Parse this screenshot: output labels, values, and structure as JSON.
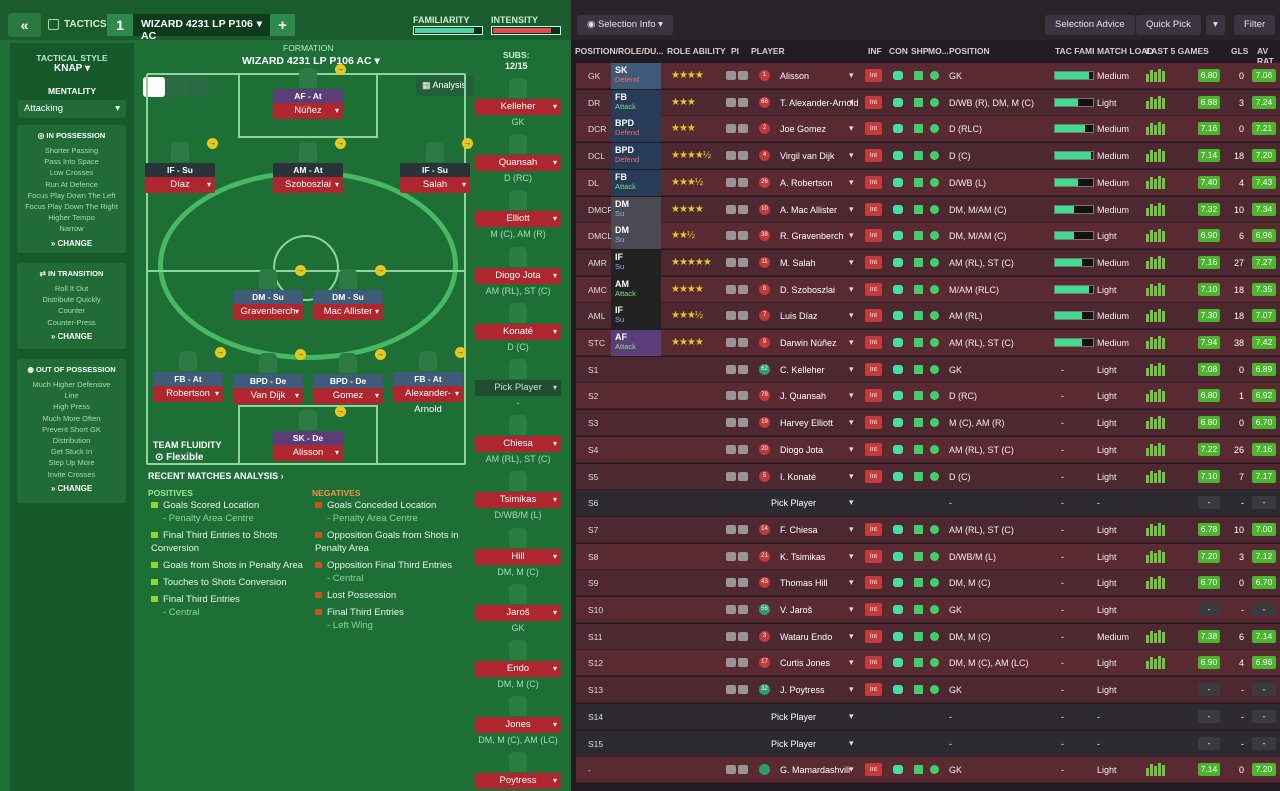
{
  "topbar": {
    "tactics_label": "TACTICS",
    "tactic_number": "1",
    "tactic_name": "WIZARD 4231 LP P106 AC",
    "familiarity_label": "FAMILIARITY",
    "intensity_label": "INTENSITY",
    "familiarity_level": 0.9,
    "intensity_level": 0.88
  },
  "sidebar": {
    "style_label": "TACTICAL STYLE",
    "style_value": "KNAP",
    "mentality_label": "MENTALITY",
    "mentality_value": "Attacking",
    "possession": {
      "title": "IN POSSESSION",
      "items": [
        "Shorter Passing",
        "Pass Into Space",
        "Low Crosses",
        "Run At Defence",
        "Focus Play Down The Left",
        "Focus Play Down The Right",
        "Higher Tempo",
        "Narrow"
      ],
      "change": "CHANGE"
    },
    "transition": {
      "title": "IN TRANSITION",
      "items": [
        "Roll It Out",
        "Distribute Quickly",
        "Counter",
        "Counter-Press"
      ],
      "change": "CHANGE"
    },
    "oop": {
      "title": "OUT OF POSSESSION",
      "items": [
        "Much Higher Defensive",
        "Line",
        "High Press",
        "Much More Often",
        "Prevent Short GK",
        "Distribution",
        "Get Stuck In",
        "Step Up More",
        "Invite Crosses"
      ],
      "change": "CHANGE"
    }
  },
  "formation": {
    "label": "FORMATION",
    "name": "WIZARD 4231 LP P106 AC",
    "analysis": "Analysis",
    "fluidity_label": "TEAM FLUIDITY",
    "fluidity_value": "Flexible",
    "players": [
      {
        "role": "AF",
        "duty": "At",
        "name": "Núñez"
      },
      {
        "role": "IF",
        "duty": "Su",
        "name": "Díaz"
      },
      {
        "role": "AM",
        "duty": "At",
        "name": "Szoboszlai"
      },
      {
        "role": "IF",
        "duty": "Su",
        "name": "Salah"
      },
      {
        "role": "DM",
        "duty": "Su",
        "name": "Gravenberch"
      },
      {
        "role": "DM",
        "duty": "Su",
        "name": "Mac Allister"
      },
      {
        "role": "FB",
        "duty": "At",
        "name": "Robertson"
      },
      {
        "role": "BPD",
        "duty": "De",
        "name": "Van Dijk"
      },
      {
        "role": "BPD",
        "duty": "De",
        "name": "Gomez"
      },
      {
        "role": "FB",
        "duty": "At",
        "name": "Alexander-Arnold"
      },
      {
        "role": "SK",
        "duty": "De",
        "name": "Alisson"
      }
    ]
  },
  "subs": {
    "label": "SUBS:",
    "count": "12/15",
    "list": [
      {
        "name": "Kelleher",
        "pos": "GK"
      },
      {
        "name": "Quansah",
        "pos": "D (RC)"
      },
      {
        "name": "Elliott",
        "pos": "M (C), AM (R)"
      },
      {
        "name": "Diogo Jota",
        "pos": "AM (RL), ST (C)"
      },
      {
        "name": "Konaté",
        "pos": "D (C)"
      },
      {
        "name": "Pick Player",
        "pos": "-"
      },
      {
        "name": "Chiesa",
        "pos": "AM (RL), ST (C)"
      },
      {
        "name": "Tsimikas",
        "pos": "D/WB/M (L)"
      },
      {
        "name": "Hill",
        "pos": "DM, M (C)"
      },
      {
        "name": "Jaroš",
        "pos": "GK"
      },
      {
        "name": "Endo",
        "pos": "DM, M (C)"
      },
      {
        "name": "Jones",
        "pos": "DM, M (C), AM (LC)"
      },
      {
        "name": "Poytress",
        "pos": "GK"
      }
    ]
  },
  "analysis": {
    "title": "RECENT MATCHES ANALYSIS ›",
    "positives_title": "POSITIVES",
    "negatives_title": "NEGATIVES",
    "positives": [
      {
        "t": "Goals Scored Location",
        "s": "- Penalty Area Centre"
      },
      {
        "t": "Final Third Entries to Shots Conversion",
        "s": ""
      },
      {
        "t": "Goals from Shots in Penalty Area",
        "s": ""
      },
      {
        "t": "Touches to Shots Conversion",
        "s": ""
      },
      {
        "t": "Final Third Entries",
        "s": "- Central"
      }
    ],
    "negatives": [
      {
        "t": "Goals Conceded Location",
        "s": "- Penalty Area Centre"
      },
      {
        "t": "Opposition Goals from Shots in Penalty Area",
        "s": ""
      },
      {
        "t": "Opposition Final Third Entries",
        "s": "- Central"
      },
      {
        "t": "Lost Possession",
        "s": ""
      },
      {
        "t": "Final Third Entries",
        "s": "- Left Wing"
      }
    ]
  },
  "rightbar": {
    "selection_info": "Selection Info",
    "selection_advice": "Selection Advice",
    "quick_pick": "Quick Pick",
    "filter": "Filter"
  },
  "columns": [
    "POSITION/ROLE/DU...",
    "ROLE ABILITY",
    "PI",
    "PLAYER",
    "INF",
    "CON",
    "SHP",
    "MO...",
    "POSITION",
    "TAC FAMI",
    "MATCH LOAD",
    "LAST 5 GAMES",
    "GLS",
    "AV RAT"
  ],
  "rows": [
    {
      "slot": "GK",
      "role": "SK",
      "duty": "Defend",
      "stars": "★★★★",
      "num": "1",
      "name": "Alisson",
      "position": "GK",
      "tac": 0.9,
      "load": "Medium",
      "last": "6.80",
      "gls": "0",
      "av": "7.06"
    },
    {
      "slot": "DR",
      "role": "FB",
      "duty": "Attack",
      "stars": "★★★",
      "num": "66",
      "name": "T. Alexander-Arnold",
      "position": "D/WB (R), DM, M (C)",
      "tac": 0.6,
      "load": "Light",
      "last": "6.88",
      "gls": "3",
      "av": "7.24"
    },
    {
      "slot": "DCR",
      "role": "BPD",
      "duty": "Defend",
      "stars": "★★★",
      "num": "2",
      "name": "Joe Gomez",
      "position": "D (RLC)",
      "tac": 0.8,
      "load": "Medium",
      "last": "7.16",
      "gls": "0",
      "av": "7.21"
    },
    {
      "slot": "DCL",
      "role": "BPD",
      "duty": "Defend",
      "stars": "★★★★½",
      "num": "4",
      "name": "Virgil van Dijk",
      "position": "D (C)",
      "tac": 0.95,
      "load": "Medium",
      "last": "7.14",
      "gls": "18",
      "av": "7.20"
    },
    {
      "slot": "DL",
      "role": "FB",
      "duty": "Attack",
      "stars": "★★★½",
      "num": "26",
      "name": "A. Robertson",
      "position": "D/WB (L)",
      "tac": 0.6,
      "load": "Medium",
      "last": "7.40",
      "gls": "4",
      "av": "7.43"
    },
    {
      "slot": "DMCR",
      "role": "DM",
      "duty": "Su",
      "stars": "★★★★",
      "num": "10",
      "name": "A. Mac Allister",
      "position": "DM, M/AM (C)",
      "tac": 0.5,
      "load": "Medium",
      "last": "7.32",
      "gls": "10",
      "av": "7.34"
    },
    {
      "slot": "DMCL",
      "role": "DM",
      "duty": "Su",
      "stars": "★★½",
      "num": "38",
      "name": "R. Gravenberch",
      "position": "DM, M/AM (C)",
      "tac": 0.5,
      "load": "Light",
      "last": "6.90",
      "gls": "6",
      "av": "6.96"
    },
    {
      "slot": "AMR",
      "role": "IF",
      "duty": "Su",
      "stars": "★★★★★",
      "num": "11",
      "name": "M. Salah",
      "position": "AM (RL), ST (C)",
      "tac": 0.7,
      "load": "Medium",
      "last": "7.16",
      "gls": "27",
      "av": "7.27"
    },
    {
      "slot": "AMC",
      "role": "AM",
      "duty": "Attack",
      "stars": "★★★★",
      "num": "8",
      "name": "D. Szoboszlai",
      "position": "M/AM (RLC)",
      "tac": 0.9,
      "load": "Light",
      "last": "7.10",
      "gls": "18",
      "av": "7.35"
    },
    {
      "slot": "AML",
      "role": "IF",
      "duty": "Su",
      "stars": "★★★½",
      "num": "7",
      "name": "Luis Díaz",
      "position": "AM (RL)",
      "tac": 0.7,
      "load": "Medium",
      "last": "7.30",
      "gls": "18",
      "av": "7.07"
    },
    {
      "slot": "STC",
      "role": "AF",
      "duty": "Attack",
      "stars": "★★★★",
      "num": "9",
      "name": "Darwin Núñez",
      "position": "AM (RL), ST (C)",
      "tac": 0.7,
      "load": "Medium",
      "last": "7.94",
      "gls": "38",
      "av": "7.42"
    },
    {
      "slot": "S1",
      "num": "62",
      "name": "C. Kelleher",
      "position": "GK",
      "load": "Light",
      "last": "7.08",
      "gls": "0",
      "av": "6.89"
    },
    {
      "slot": "S2",
      "num": "78",
      "name": "J. Quansah",
      "position": "D (RC)",
      "load": "Light",
      "last": "6.80",
      "gls": "1",
      "av": "6.92"
    },
    {
      "slot": "S3",
      "num": "19",
      "name": "Harvey Elliott",
      "position": "M (C), AM (R)",
      "load": "Light",
      "last": "6.80",
      "gls": "0",
      "av": "6.70"
    },
    {
      "slot": "S4",
      "num": "20",
      "name": "Diogo Jota",
      "position": "AM (RL), ST (C)",
      "load": "Light",
      "last": "7.22",
      "gls": "26",
      "av": "7.16"
    },
    {
      "slot": "S5",
      "num": "5",
      "name": "I. Konaté",
      "position": "D (C)",
      "load": "Light",
      "last": "7.10",
      "gls": "7",
      "av": "7.17"
    },
    {
      "slot": "S6",
      "name": "Pick Player",
      "position": "-",
      "load": "-",
      "last": "-",
      "gls": "-",
      "av": "-",
      "empty": true
    },
    {
      "slot": "S7",
      "num": "14",
      "name": "F. Chiesa",
      "position": "AM (RL), ST (C)",
      "load": "Light",
      "last": "6.78",
      "gls": "10",
      "av": "7.00"
    },
    {
      "slot": "S8",
      "num": "21",
      "name": "K. Tsimikas",
      "position": "D/WB/M (L)",
      "load": "Light",
      "last": "7.20",
      "gls": "3",
      "av": "7.12"
    },
    {
      "slot": "S9",
      "num": "43",
      "name": "Thomas Hill",
      "position": "DM, M (C)",
      "load": "Light",
      "last": "6.70",
      "gls": "0",
      "av": "6.70"
    },
    {
      "slot": "S10",
      "num": "56",
      "name": "V. Jaroš",
      "position": "GK",
      "load": "Light",
      "last": "-",
      "gls": "-",
      "av": "-"
    },
    {
      "slot": "S11",
      "num": "3",
      "name": "Wataru Endo",
      "position": "DM, M (C)",
      "load": "Medium",
      "last": "7.38",
      "gls": "6",
      "av": "7.14"
    },
    {
      "slot": "S12",
      "num": "17",
      "name": "Curtis Jones",
      "position": "DM, M (C), AM (LC)",
      "load": "Light",
      "last": "6.90",
      "gls": "4",
      "av": "6.96"
    },
    {
      "slot": "S13",
      "num": "32",
      "name": "J. Poytress",
      "position": "GK",
      "load": "Light",
      "last": "-",
      "gls": "-",
      "av": "-"
    },
    {
      "slot": "S14",
      "name": "Pick Player",
      "position": "-",
      "load": "-",
      "last": "-",
      "gls": "-",
      "av": "-",
      "empty": true
    },
    {
      "slot": "S15",
      "name": "Pick Player",
      "position": "-",
      "load": "-",
      "last": "-",
      "gls": "-",
      "av": "-",
      "empty": true
    },
    {
      "slot": "-",
      "num": "",
      "name": "G. Mamardashvili",
      "position": "GK",
      "load": "Light",
      "last": "7.14",
      "gls": "0",
      "av": "7.20"
    }
  ]
}
